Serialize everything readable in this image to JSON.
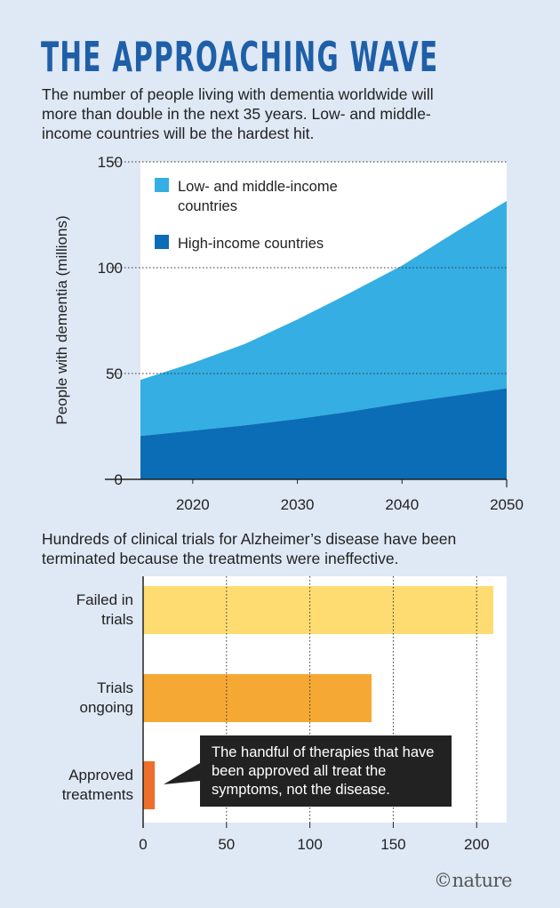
{
  "header": {
    "title": "THE APPROACHING WAVE",
    "subtitle": "The number of people living with dementia worldwide will more than double in the next 35 years. Low- and middle-income countries will be the hardest hit."
  },
  "chart_data": [
    {
      "type": "area",
      "stacked": true,
      "x": [
        2015,
        2020,
        2025,
        2030,
        2035,
        2040,
        2045,
        2050
      ],
      "series": [
        {
          "name": "High-income countries",
          "color": "#0a6db5",
          "values": [
            20.5,
            23,
            25.5,
            28.5,
            32,
            36,
            39.5,
            43
          ]
        },
        {
          "name": "Low- and middle-income countries",
          "color": "#34aee3",
          "values": [
            26.5,
            32,
            38.5,
            47,
            56,
            65,
            77,
            88.5
          ]
        }
      ],
      "totals": [
        47,
        55,
        64,
        75.5,
        88,
        101,
        116.5,
        131.5
      ],
      "ylabel": "People with dementia (millions)",
      "xlabel": "",
      "ylim": [
        0,
        150
      ],
      "xlim": [
        2015,
        2050
      ],
      "yticks": [
        "0",
        "50",
        "100",
        "150"
      ],
      "xticks": [
        "2020",
        "2030",
        "2040",
        "2050"
      ],
      "grid": "horizontal dotted",
      "legend_position": "top-left"
    },
    {
      "type": "bar",
      "orientation": "horizontal",
      "intro": "Hundreds of clinical trials for Alzheimer’s disease have been terminated because the treatments were ineffective.",
      "categories": [
        "Failed in trials",
        "Trials ongoing",
        "Approved treatments"
      ],
      "category_lines": [
        [
          "Failed in",
          "trials"
        ],
        [
          "Trials",
          "ongoing"
        ],
        [
          "Approved",
          "treatments"
        ]
      ],
      "values": [
        210,
        137,
        7
      ],
      "colors": [
        "#fedc72",
        "#f6a834",
        "#ee6f2d"
      ],
      "xlim": [
        0,
        210
      ],
      "xticks": [
        "0",
        "50",
        "100",
        "150",
        "200"
      ],
      "grid": "vertical dotted",
      "annotation": "The handful of therapies that have been approved all treat the symptoms, not the disease."
    }
  ],
  "footer": {
    "logo": "©nature"
  }
}
